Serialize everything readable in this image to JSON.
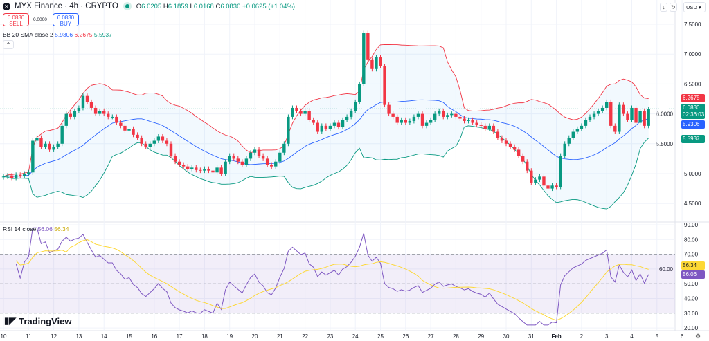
{
  "header": {
    "symbol": "MYX Finance · 4h · CRYPTO",
    "o_label": "O",
    "o": "6.0205",
    "h_label": "H",
    "h": "6.1859",
    "l_label": "L",
    "l": "6.0168",
    "c_label": "C",
    "c": "6.0830",
    "change": "+0.0625 (+1.04%)"
  },
  "trade": {
    "sell_price": "6.0830",
    "sell_label": "SELL",
    "spread": "0.0000",
    "buy_price": "6.0830",
    "buy_label": "BUY"
  },
  "bb_legend": {
    "label": "BB 20 SMA close 2",
    "basis": "5.9306",
    "upper": "6.2675",
    "lower": "5.5937"
  },
  "rsi_legend": {
    "label": "RSI 14 close",
    "rsi": "56.06",
    "ma": "56.34"
  },
  "currency": "USD",
  "price_tags": {
    "upper": "6.2675",
    "last": "6.0830",
    "countdown": "02:36:03",
    "basis": "5.9306",
    "lower": "5.5937",
    "rsi_ma": "56.34",
    "rsi": "56.06"
  },
  "brand": "TradingView",
  "colors": {
    "up": "#089981",
    "down": "#f23645",
    "bb_upper": "#f23645",
    "bb_basis": "#2962ff",
    "bb_lower": "#089981",
    "rsi": "#7e57c2",
    "rsi_ma": "#fdd835"
  },
  "chart_data": {
    "type": "candlestick",
    "interval": "4h",
    "price_axis": {
      "ticks": [
        "7.5000",
        "7.0000",
        "6.5000",
        "6.0000",
        "5.5000",
        "5.0000",
        "4.5000"
      ],
      "range": [
        4.3,
        7.75
      ]
    },
    "rsi_axis": {
      "ticks": [
        "90.00",
        "80.00",
        "70.00",
        "60.00",
        "50.00",
        "40.00",
        "30.00",
        "20.00"
      ],
      "range": [
        18,
        92
      ],
      "bands": [
        30,
        50,
        70
      ]
    },
    "x_ticks": [
      "10",
      "11",
      "12",
      "13",
      "14",
      "15",
      "16",
      "17",
      "18",
      "19",
      "20",
      "21",
      "22",
      "23",
      "24",
      "25",
      "26",
      "27",
      "28",
      "29",
      "30",
      "31",
      "Feb",
      "2",
      "3",
      "4",
      "5",
      "6"
    ],
    "first_open": 4.94,
    "closes": [
      4.95,
      4.97,
      4.93,
      4.98,
      4.96,
      5.0,
      5.02,
      5.55,
      5.6,
      5.45,
      5.5,
      5.4,
      5.45,
      5.5,
      5.8,
      6.0,
      5.95,
      6.05,
      6.1,
      6.3,
      6.2,
      6.1,
      6.0,
      6.05,
      6.0,
      5.95,
      5.95,
      5.85,
      5.8,
      5.72,
      5.75,
      5.65,
      5.6,
      5.5,
      5.45,
      5.5,
      5.55,
      5.62,
      5.55,
      5.5,
      5.3,
      5.2,
      5.15,
      5.12,
      5.08,
      5.1,
      5.06,
      5.05,
      5.08,
      5.05,
      5.02,
      5.1,
      5.0,
      5.2,
      5.3,
      5.25,
      5.2,
      5.15,
      5.25,
      5.35,
      5.4,
      5.3,
      5.25,
      5.15,
      5.12,
      5.2,
      5.35,
      5.5,
      5.95,
      6.1,
      6.05,
      6.0,
      6.05,
      5.9,
      5.85,
      5.7,
      5.8,
      5.75,
      5.8,
      5.85,
      5.78,
      5.9,
      5.95,
      6.05,
      6.2,
      6.5,
      7.35,
      6.9,
      6.75,
      6.95,
      6.8,
      6.15,
      6.0,
      5.95,
      5.85,
      5.9,
      5.85,
      5.88,
      5.95,
      6.0,
      5.8,
      5.85,
      5.9,
      6.0,
      6.05,
      5.95,
      5.98,
      6.0,
      5.95,
      5.92,
      5.88,
      5.9,
      5.85,
      5.82,
      5.8,
      5.75,
      5.8,
      5.7,
      5.6,
      5.55,
      5.5,
      5.45,
      5.4,
      5.3,
      5.2,
      5.05,
      4.85,
      4.9,
      4.95,
      4.8,
      4.75,
      4.8,
      4.78,
      5.3,
      5.5,
      5.6,
      5.7,
      5.75,
      5.8,
      5.9,
      5.95,
      6.0,
      6.05,
      6.1,
      6.2,
      5.8,
      5.7,
      6.15,
      6.0,
      5.9,
      6.1,
      5.85,
      6.05,
      5.8,
      6.083
    ],
    "indicators": [
      "BB 20 SMA close 2",
      "RSI 14 close"
    ]
  }
}
